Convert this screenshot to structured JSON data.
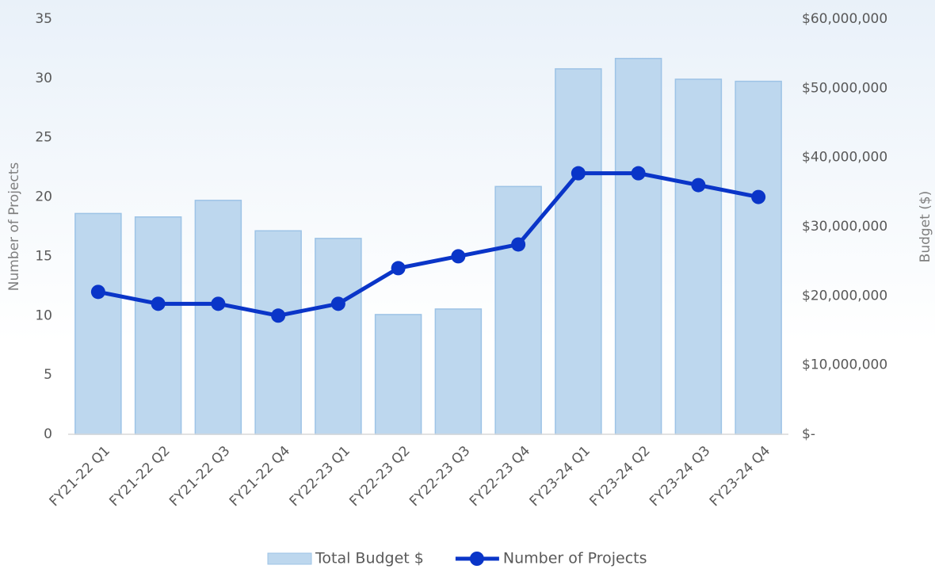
{
  "chart_data": {
    "type": "combo",
    "categories": [
      "FY21-22 Q1",
      "FY21-22 Q2",
      "FY21-22 Q3",
      "FY21-22 Q4",
      "FY22-23 Q1",
      "FY22-23 Q2",
      "FY22-23 Q3",
      "FY22-23 Q4",
      "FY23-24 Q1",
      "FY23-24 Q2",
      "FY23-24 Q3",
      "FY23-24 Q4"
    ],
    "series": [
      {
        "name": "Total Budget $",
        "type": "bar",
        "axis": "y2",
        "color": "#bdd7ee",
        "values": [
          31900000,
          31400000,
          33800000,
          29400000,
          28300000,
          17300000,
          18100000,
          35800000,
          52800000,
          54300000,
          51300000,
          51000000
        ]
      },
      {
        "name": "Number of Projects",
        "type": "line",
        "axis": "y",
        "color": "#0a35c8",
        "values": [
          12,
          11,
          11,
          10,
          11,
          14,
          15,
          16,
          22,
          22,
          21,
          20
        ]
      }
    ],
    "ylabel": "Number of Projects",
    "y2label": "Budget ($)",
    "ylim": [
      0,
      35
    ],
    "yticks": [
      0,
      5,
      10,
      15,
      20,
      25,
      30,
      35
    ],
    "y2lim": [
      0,
      60000000
    ],
    "y2ticks": [
      {
        "value": 0,
        "label": "$-"
      },
      {
        "value": 10000000,
        "label": "$10,000,000"
      },
      {
        "value": 20000000,
        "label": "$20,000,000"
      },
      {
        "value": 30000000,
        "label": "$30,000,000"
      },
      {
        "value": 40000000,
        "label": "$40,000,000"
      },
      {
        "value": 50000000,
        "label": "$50,000,000"
      },
      {
        "value": 60000000,
        "label": "$60,000,000"
      }
    ],
    "legend": "bottom"
  }
}
